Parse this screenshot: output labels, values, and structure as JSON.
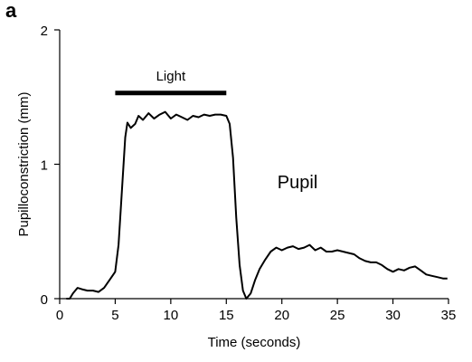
{
  "panel_label": "a",
  "chart_data": {
    "type": "line",
    "xlabel": "Time (seconds)",
    "ylabel": "Pupilloconstriction (mm)",
    "xlim": [
      0,
      35
    ],
    "ylim": [
      0,
      2
    ],
    "x_ticks": [
      0,
      5,
      10,
      15,
      20,
      25,
      30,
      35
    ],
    "y_ticks": [
      0,
      1,
      2
    ],
    "grid": false,
    "stimulus_bar": {
      "label": "Light",
      "x_start": 5,
      "x_end": 15,
      "y": 1.53
    },
    "annotations": [
      {
        "text": "Pupil",
        "x": 19.6,
        "y": 0.82
      }
    ],
    "series": [
      {
        "color": "#000000",
        "points": [
          [
            0.6,
            0.0
          ],
          [
            0.9,
            0.0
          ],
          [
            1.2,
            0.04
          ],
          [
            1.6,
            0.08
          ],
          [
            2.0,
            0.07
          ],
          [
            2.5,
            0.06
          ],
          [
            3.0,
            0.06
          ],
          [
            3.5,
            0.05
          ],
          [
            4.0,
            0.08
          ],
          [
            4.5,
            0.14
          ],
          [
            5.0,
            0.2
          ],
          [
            5.3,
            0.4
          ],
          [
            5.6,
            0.8
          ],
          [
            5.9,
            1.2
          ],
          [
            6.1,
            1.31
          ],
          [
            6.4,
            1.27
          ],
          [
            6.8,
            1.3
          ],
          [
            7.1,
            1.36
          ],
          [
            7.5,
            1.33
          ],
          [
            8.0,
            1.38
          ],
          [
            8.5,
            1.34
          ],
          [
            9.0,
            1.37
          ],
          [
            9.5,
            1.39
          ],
          [
            10.0,
            1.34
          ],
          [
            10.5,
            1.37
          ],
          [
            11.0,
            1.35
          ],
          [
            11.5,
            1.33
          ],
          [
            12.0,
            1.36
          ],
          [
            12.5,
            1.35
          ],
          [
            13.0,
            1.37
          ],
          [
            13.5,
            1.36
          ],
          [
            14.0,
            1.37
          ],
          [
            14.5,
            1.37
          ],
          [
            15.0,
            1.36
          ],
          [
            15.3,
            1.3
          ],
          [
            15.6,
            1.05
          ],
          [
            15.9,
            0.6
          ],
          [
            16.2,
            0.25
          ],
          [
            16.5,
            0.06
          ],
          [
            16.8,
            0.0
          ],
          [
            17.2,
            0.04
          ],
          [
            17.6,
            0.14
          ],
          [
            18.0,
            0.22
          ],
          [
            18.5,
            0.29
          ],
          [
            19.0,
            0.35
          ],
          [
            19.5,
            0.38
          ],
          [
            20.0,
            0.36
          ],
          [
            20.5,
            0.38
          ],
          [
            21.0,
            0.39
          ],
          [
            21.5,
            0.37
          ],
          [
            22.0,
            0.38
          ],
          [
            22.5,
            0.4
          ],
          [
            23.0,
            0.36
          ],
          [
            23.5,
            0.38
          ],
          [
            24.0,
            0.35
          ],
          [
            24.5,
            0.35
          ],
          [
            25.0,
            0.36
          ],
          [
            25.5,
            0.35
          ],
          [
            26.0,
            0.34
          ],
          [
            26.5,
            0.33
          ],
          [
            27.0,
            0.3
          ],
          [
            27.5,
            0.28
          ],
          [
            28.0,
            0.27
          ],
          [
            28.5,
            0.27
          ],
          [
            29.0,
            0.25
          ],
          [
            29.5,
            0.22
          ],
          [
            30.0,
            0.2
          ],
          [
            30.5,
            0.22
          ],
          [
            31.0,
            0.21
          ],
          [
            31.5,
            0.23
          ],
          [
            32.0,
            0.24
          ],
          [
            32.5,
            0.21
          ],
          [
            33.0,
            0.18
          ],
          [
            33.5,
            0.17
          ],
          [
            34.0,
            0.16
          ],
          [
            34.5,
            0.15
          ],
          [
            34.9,
            0.15
          ]
        ]
      }
    ]
  }
}
